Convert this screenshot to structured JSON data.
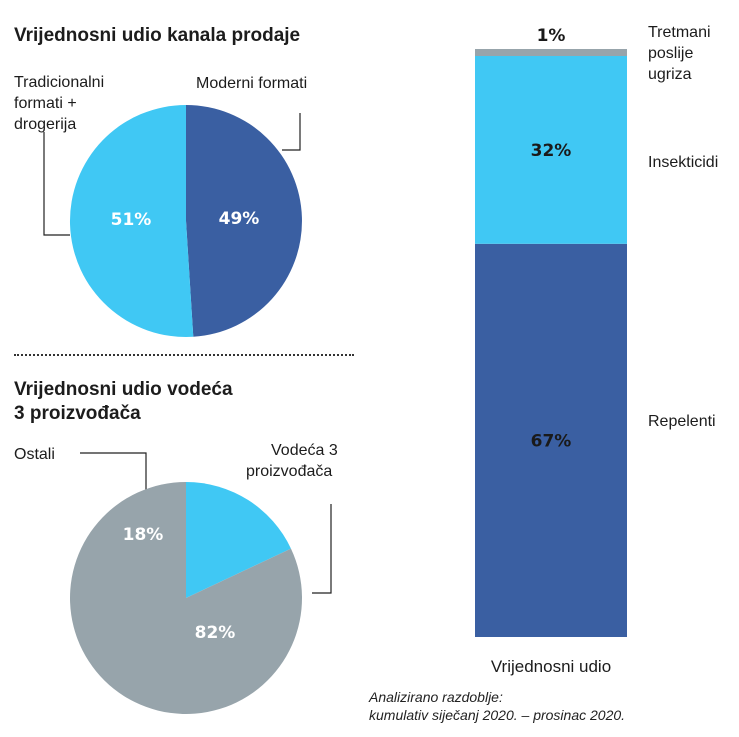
{
  "chart_data": [
    {
      "type": "pie",
      "title": "Vrijednosni udio kanala prodaje",
      "slices": [
        {
          "label": "Moderni formati",
          "value": 49,
          "value_label": "49%",
          "color": "#3a5fa2"
        },
        {
          "label": "Tradicionalni formati + drogerija",
          "value": 51,
          "value_label": "51%",
          "color": "#40c8f4"
        }
      ]
    },
    {
      "type": "pie",
      "title": "Vrijednosni udio vodeća 3 proizvođača",
      "slices": [
        {
          "label": "Ostali",
          "value": 18,
          "value_label": "18%",
          "color": "#40c8f4"
        },
        {
          "label": "Vodeća 3 proizvođača",
          "value": 82,
          "value_label": "82%",
          "color": "#97a4ab"
        }
      ]
    },
    {
      "type": "bar",
      "stacked": true,
      "xlabel": "Vrijednosni udio",
      "segments": [
        {
          "label": "Repelenti",
          "value": 67,
          "value_label": "67%",
          "color": "#3a5fa2"
        },
        {
          "label": "Insekticidi",
          "value": 32,
          "value_label": "32%",
          "color": "#40c8f4"
        },
        {
          "label": "Tretmani poslije ugriza",
          "value": 1,
          "value_label": "1%",
          "color": "#97a4ab"
        }
      ]
    }
  ],
  "labels": {
    "pie1_left_label": [
      "Tradicionalni",
      "formati +",
      "drogerija"
    ],
    "pie1_right_label": "Moderni formati",
    "pie2_title_lines": [
      "Vrijednosni udio vodeća",
      "3 proizvođača"
    ],
    "pie2_left_label": "Ostali",
    "pie2_right_label": [
      "Vodeća 3",
      "proizvođača"
    ],
    "bar_top_label": [
      "Tretmani",
      "poslije",
      "ugriza"
    ]
  },
  "footnote": [
    "Analizirano razdoblje:",
    "kumulativ siječanj 2020. – prosinac 2020."
  ]
}
